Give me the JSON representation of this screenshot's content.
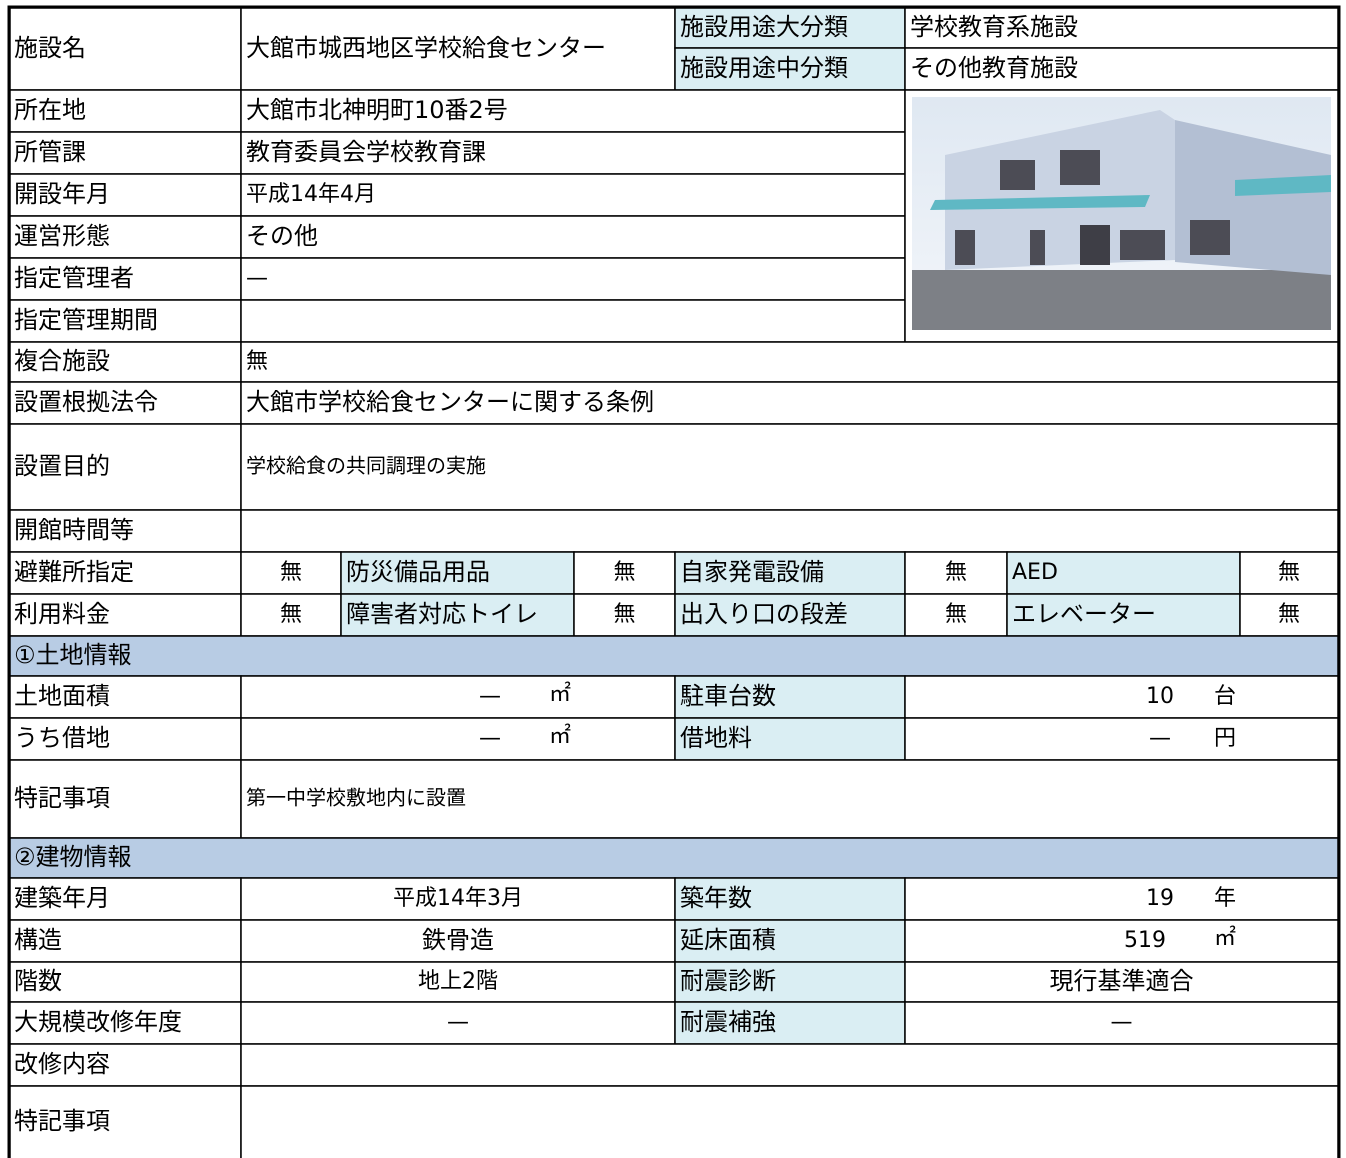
{
  "cells": [
    "施設名",
    "大館市城西地区学校給食センター",
    "施設用途大分類",
    "学校教育系施設",
    "施設用途中分類",
    "その他教育施設",
    "所在地",
    "大館市北神明町10番2号",
    "所管課",
    "教育委員会学校教育課",
    "開設年月",
    "平成14年4月",
    "運営形態",
    "その他",
    "指定管理者",
    "—",
    "指定管理期間",
    "複合施設",
    "無",
    "設置根拠法令",
    "大館市学校給食センターに関する条例",
    "設置目的",
    "学校給食の共同調理の実施",
    "開館時間等",
    "避難所指定",
    "無",
    "防災備品用品",
    "無",
    "自家発電設備",
    "無",
    "AED",
    "無",
    "利用料金",
    "無",
    "障害者対応トイレ",
    "無",
    "出入り口の段差",
    "無",
    "エレベーター",
    "無",
    "①土地情報",
    "土地面積",
    "—",
    "㎡",
    "駐車台数",
    "10",
    "台",
    "うち借地",
    "—",
    "㎡",
    "借地料",
    "—",
    "円",
    "特記事項",
    "第一中学校敷地内に設置",
    "②建物情報",
    "建築年月",
    "平成14年3月",
    "築年数",
    "19",
    "年",
    "構造",
    "鉄骨造",
    "延床面積",
    "519",
    "㎡",
    "階数",
    "地上2階",
    "耐震診断",
    "現行基準適合",
    "大規模改修年度",
    "—",
    "耐震補強",
    "—",
    "改修内容",
    "特記事項"
  ]
}
